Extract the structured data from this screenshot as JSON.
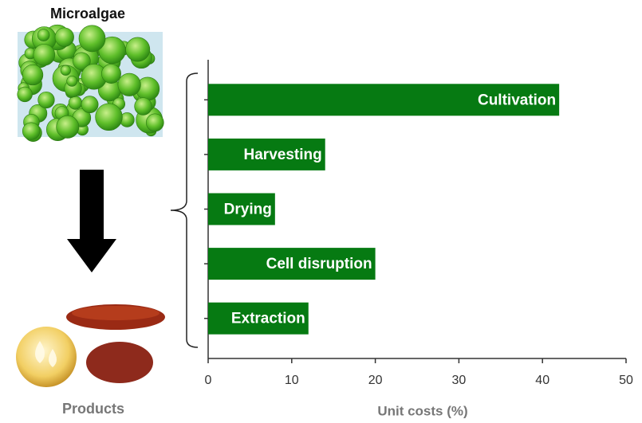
{
  "chart_data": {
    "type": "bar",
    "orientation": "horizontal",
    "categories": [
      "Cultivation",
      "Harvesting",
      "Drying",
      "Cell disruption",
      "Extraction"
    ],
    "values": [
      42,
      14,
      8,
      20,
      12
    ],
    "color": "#067a12",
    "xlim": [
      0,
      50
    ],
    "xticks": [
      0,
      10,
      20,
      30,
      40,
      50
    ],
    "xlabel": "Unit costs (%)",
    "annotations": [
      "Microalgae",
      "Products"
    ]
  }
}
